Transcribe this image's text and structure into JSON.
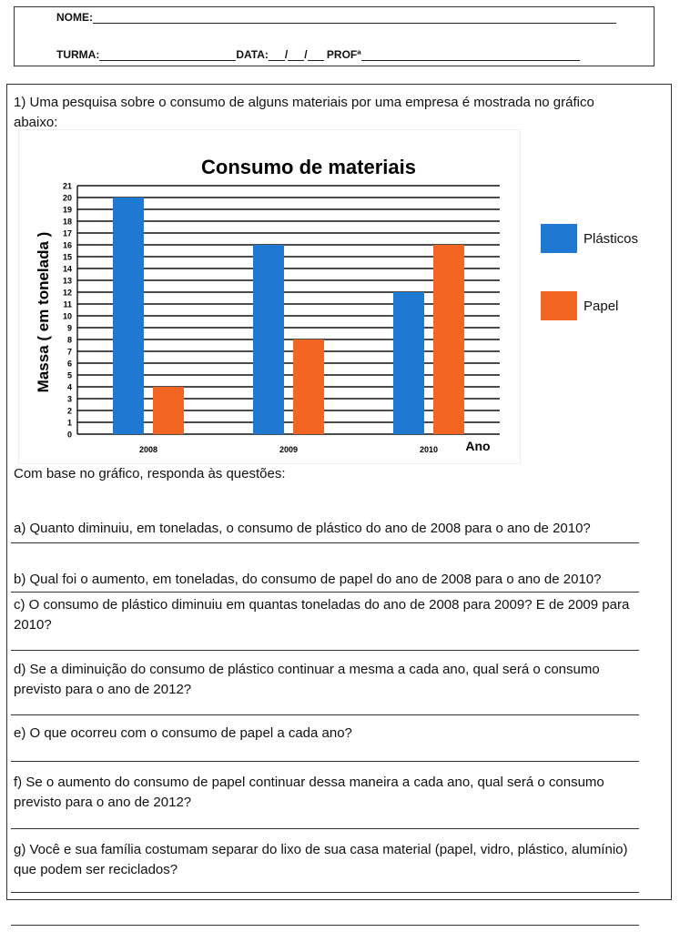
{
  "header": {
    "nome_label": "NOME:",
    "turma_label": "TURMA:",
    "data_label": "DATA:",
    "slash": "/",
    "prof_label": "PROFª"
  },
  "question1": {
    "intro": "1) Uma pesquisa sobre o consumo de alguns materiais por uma empresa é mostrada no gráfico abaixo:"
  },
  "chart_data": {
    "type": "bar",
    "title": "Consumo de materiais",
    "xlabel": "Ano",
    "ylabel": "Massa ( em tonelada )",
    "categories": [
      "2008",
      "2009",
      "2010"
    ],
    "series": [
      {
        "name": "Plásticos",
        "values": [
          20,
          16,
          12
        ],
        "color": "#1f78d1"
      },
      {
        "name": "Papel",
        "values": [
          4,
          8,
          16
        ],
        "color": "#f26522"
      }
    ],
    "ylim": [
      0,
      21
    ],
    "yticks": [
      "0",
      "1",
      "2",
      "3",
      "4",
      "5",
      "6",
      "7",
      "8",
      "9",
      "10",
      "11",
      "12",
      "13",
      "14",
      "15",
      "16",
      "17",
      "18",
      "19",
      "20",
      "21"
    ],
    "grid": true,
    "legend_position": "right"
  },
  "instructions": "Com base no gráfico, responda às questões:",
  "questions": [
    "a) Quanto diminuiu, em toneladas, o consumo de plástico do ano de 2008 para o ano de 2010?",
    "b) Qual foi o aumento, em toneladas, do consumo de papel do ano de 2008 para o ano de 2010?",
    "c) O consumo de plástico diminuiu em quantas toneladas do ano de 2008 para 2009? E de 2009 para 2010?",
    "d) Se a diminuição do consumo de plástico continuar a mesma a cada ano, qual será o consumo previsto para o ano de 2012?",
    "e) O que ocorreu com o consumo de papel a cada ano?",
    "f) Se o aumento do consumo de papel continuar dessa maneira a cada ano, qual será o consumo previsto para o ano de 2012?",
    "g) Você e sua família costumam separar do lixo de sua casa material (papel, vidro, plástico, alumínio) que podem ser reciclados?"
  ]
}
